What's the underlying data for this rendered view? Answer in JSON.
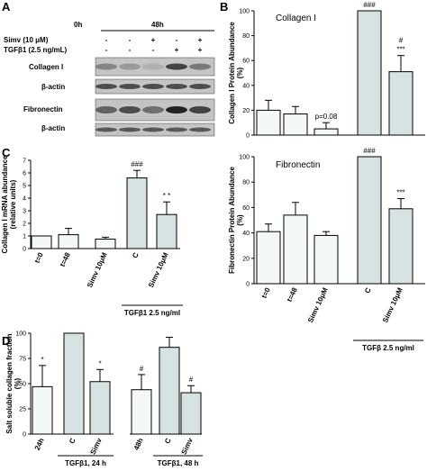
{
  "panel_labels": [
    "A",
    "B",
    "C",
    "D"
  ],
  "blot": {
    "time_labels": [
      "0h",
      "48h"
    ],
    "treatments": [
      {
        "label": "Simv (10 μM)",
        "marks": [
          "-",
          "-",
          "+",
          "-",
          "+"
        ]
      },
      {
        "label": "TGFβ1 (2.5 ng/mL)",
        "marks": [
          "-",
          "-",
          "-",
          "+",
          "+"
        ]
      }
    ],
    "rows": [
      "Collagen I",
      "β-actin",
      "Fibronectin",
      "β-actin"
    ]
  },
  "chart_data": [
    {
      "id": "B-top",
      "type": "bar",
      "title": "Collagen I",
      "ylabel": "Collagen I Protein Abundance (%)",
      "ylim": [
        0,
        100
      ],
      "yticks": [
        0,
        20,
        40,
        60,
        80,
        100
      ],
      "categories": [
        "",
        "",
        "",
        "",
        ""
      ],
      "values": [
        20,
        17,
        5,
        100,
        51
      ],
      "errors": [
        8,
        6,
        5,
        0,
        13
      ],
      "colors": [
        "#f3f7f7",
        "#f3f7f7",
        "#f3f7f7",
        "#d7e2e3",
        "#d7e2e3"
      ],
      "annotations": [
        "",
        "",
        "p=0.08",
        "###",
        "#\n***"
      ]
    },
    {
      "id": "B-bottom",
      "type": "bar",
      "title": "Fibronectin",
      "ylabel": "Fibronectin Protein Abundance (%)",
      "ylim": [
        0,
        100
      ],
      "yticks": [
        0,
        20,
        40,
        60,
        80,
        100
      ],
      "categories": [
        "t=0",
        "t=48",
        "Simv 10μM",
        "C",
        "Simv 10μM"
      ],
      "values": [
        41,
        54,
        38,
        100,
        59
      ],
      "errors": [
        6,
        10,
        3,
        0,
        8
      ],
      "colors": [
        "#f3f7f7",
        "#f3f7f7",
        "#f3f7f7",
        "#d7e2e3",
        "#d7e2e3"
      ],
      "annotations": [
        "",
        "",
        "",
        "###",
        "***"
      ],
      "group_label": "TGFβ 2.5 ng/ml"
    },
    {
      "id": "C",
      "type": "bar",
      "ylabel": "Collagen I mRNA abundance (relative units)",
      "ylim": [
        0,
        7
      ],
      "yticks": [
        0,
        1,
        2,
        3,
        4,
        5,
        6,
        7
      ],
      "categories": [
        "t=0",
        "t=48",
        "Simv 10μM",
        "C",
        "Simv 10μM"
      ],
      "values": [
        1.0,
        1.1,
        0.75,
        5.6,
        2.7
      ],
      "errors": [
        0,
        0.5,
        0.15,
        0.6,
        1.0
      ],
      "colors": [
        "#f3f7f7",
        "#f3f7f7",
        "#f3f7f7",
        "#d7e2e3",
        "#d7e2e3"
      ],
      "annotations": [
        "",
        "",
        "",
        "###",
        "* *"
      ],
      "group_label": "TGFβ1 2.5 ng/ml"
    },
    {
      "id": "D",
      "type": "bar",
      "ylabel": "Salt soluble collagen fraction (%)",
      "ylim": [
        0,
        100
      ],
      "yticks": [
        0,
        25,
        50,
        75,
        100
      ],
      "categories": [
        "24h",
        "C",
        "Simv",
        "48h",
        "C",
        "Simv"
      ],
      "values": [
        47,
        100,
        52,
        44,
        86,
        41
      ],
      "errors": [
        21,
        0,
        12,
        15,
        10,
        7
      ],
      "colors": [
        "#f3f7f7",
        "#d7e2e3",
        "#d7e2e3",
        "#f3f7f7",
        "#d7e2e3",
        "#d7e2e3"
      ],
      "annotations": [
        "*",
        "",
        "*",
        "#",
        "",
        "#"
      ],
      "group_labels": [
        "TGFβ1, 24 h",
        "TGFβ1, 48 h"
      ]
    }
  ]
}
